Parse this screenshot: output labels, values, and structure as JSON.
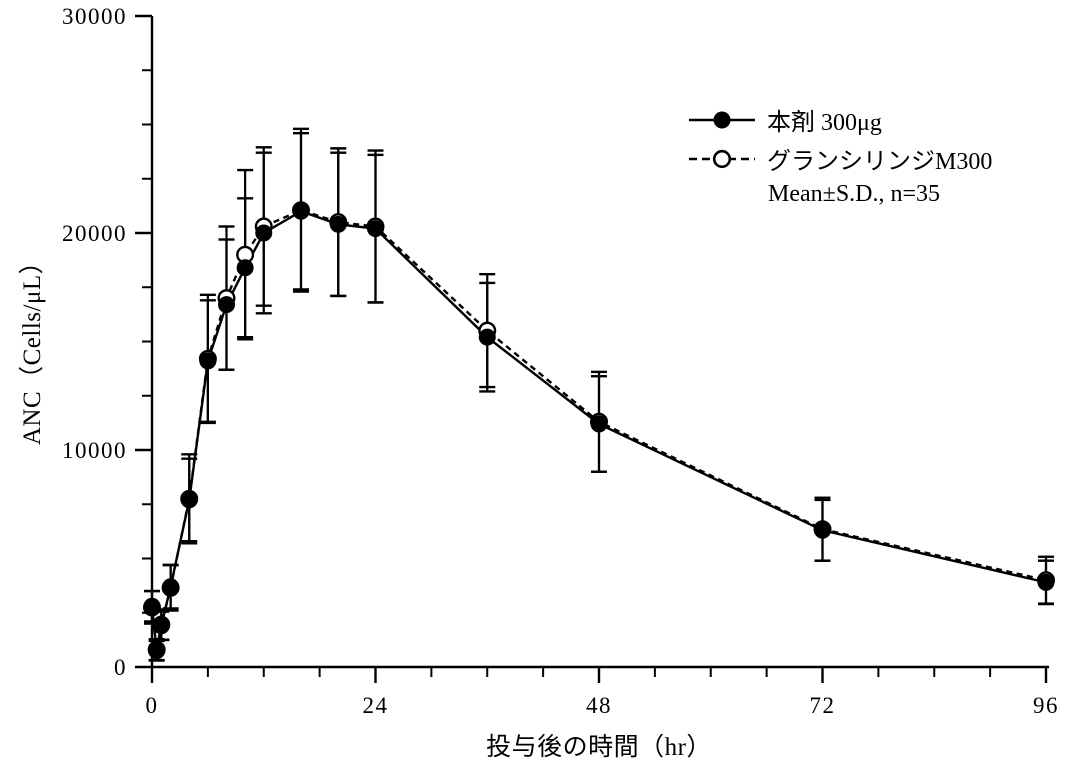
{
  "colors": {
    "foreground": "#000000",
    "background": "#ffffff"
  },
  "chart_data": {
    "type": "line",
    "title": "",
    "xlabel": "投与後の時間（hr）",
    "ylabel": "ANC（Cells/μL）",
    "annotation": "Mean±S.D., n=35",
    "x": [
      0,
      0.5,
      1,
      2,
      4,
      6,
      8,
      10,
      12,
      16,
      20,
      24,
      36,
      48,
      72,
      96
    ],
    "series": [
      {
        "name": "本剤 300μg",
        "marker": "filled-circle",
        "line_style": "solid",
        "values": [
          2800,
          750,
          1900,
          3700,
          7700,
          14100,
          16700,
          18400,
          20000,
          21000,
          20400,
          20200,
          15200,
          11200,
          6300,
          3900
        ],
        "sd": [
          700,
          450,
          650,
          1000,
          1900,
          2800,
          3000,
          3200,
          3700,
          3600,
          3300,
          3400,
          2500,
          2200,
          1400,
          1000
        ]
      },
      {
        "name": "グランシリンジM300",
        "marker": "open-circle",
        "line_style": "dashed",
        "values": [
          2750,
          800,
          1950,
          3650,
          7750,
          14200,
          17000,
          19000,
          20300,
          21050,
          20500,
          20300,
          15500,
          11300,
          6350,
          4000
        ],
        "sd": [
          750,
          480,
          700,
          1050,
          2050,
          2950,
          3300,
          3900,
          3650,
          3750,
          3400,
          3500,
          2600,
          2300,
          1450,
          1080
        ]
      }
    ],
    "error_bars": "±S.D.",
    "xlim": [
      0,
      96
    ],
    "ylim": [
      0,
      30000
    ],
    "x_major_ticks": [
      0,
      24,
      48,
      72,
      96
    ],
    "x_minor_step": 6,
    "y_major_ticks": [
      0,
      10000,
      20000,
      30000
    ],
    "y_minor_step": 2500,
    "grid": false,
    "legend_position": "upper-right-inside"
  }
}
